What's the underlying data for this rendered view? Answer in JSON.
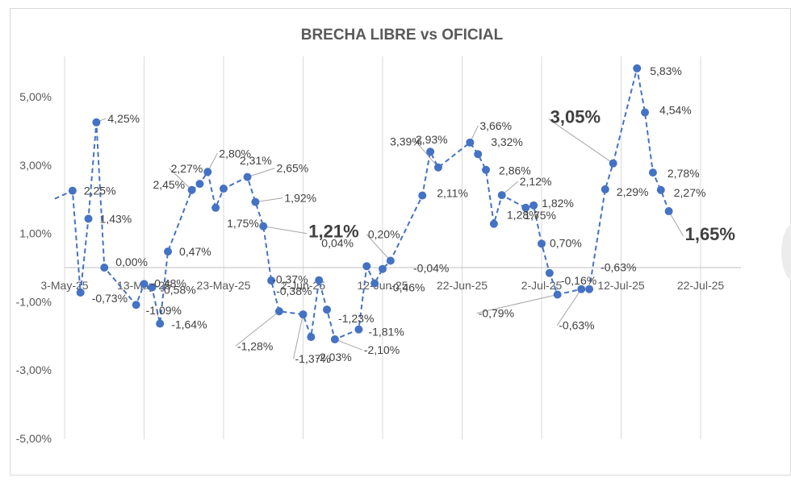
{
  "chart_data": {
    "type": "line",
    "title": "BRECHA LIBRE vs OFICIAL",
    "xlabel": "",
    "ylabel": "",
    "x_tick_labels": [
      "3-May-25",
      "13-May-25",
      "23-May-25",
      "2-Jun-25",
      "12-Jun-25",
      "22-Jun-25",
      "2-Jul-25",
      "12-Jul-25",
      "22-Jul-25"
    ],
    "y_tick_labels": [
      "5,00%",
      "3,00%",
      "1,00%",
      "-1,00%",
      "-3,00%",
      "-5,00%"
    ],
    "ylim": [
      -5,
      5.9
    ],
    "grid": "vertical",
    "series": [
      {
        "color": "#4472c4",
        "line_style": "dashed",
        "points": [
          {
            "x": "2025-05-04",
            "y": 2.25,
            "label": "2,25%"
          },
          {
            "x": "2025-05-05",
            "y": -0.73,
            "label": "-0,73%"
          },
          {
            "x": "2025-05-06",
            "y": 1.43,
            "label": "1,43%"
          },
          {
            "x": "2025-05-07",
            "y": 4.25,
            "label": "4,25%"
          },
          {
            "x": "2025-05-08",
            "y": 0.0,
            "label": "0,00%"
          },
          {
            "x": "2025-05-12",
            "y": -1.09,
            "label": "-1,09%"
          },
          {
            "x": "2025-05-13",
            "y": -0.48,
            "label": "-0,48%"
          },
          {
            "x": "2025-05-14",
            "y": -0.58,
            "label": "-0,58%"
          },
          {
            "x": "2025-05-15",
            "y": -1.64,
            "label": "-1,64%"
          },
          {
            "x": "2025-05-16",
            "y": 0.47,
            "label": "0,47%"
          },
          {
            "x": "2025-05-19",
            "y": 2.27,
            "label": "2,27%"
          },
          {
            "x": "2025-05-20",
            "y": 2.45,
            "label": "2,45%"
          },
          {
            "x": "2025-05-21",
            "y": 2.8,
            "label": "2,80%"
          },
          {
            "x": "2025-05-22",
            "y": 1.75,
            "label": "1,75%"
          },
          {
            "x": "2025-05-23",
            "y": 2.31,
            "label": "2,31%"
          },
          {
            "x": "2025-05-26",
            "y": 2.65,
            "label": "2,65%"
          },
          {
            "x": "2025-05-27",
            "y": 1.92,
            "label": "1,92%"
          },
          {
            "x": "2025-05-28",
            "y": 1.21,
            "label": "1,21%",
            "emphasis": true
          },
          {
            "x": "2025-05-29",
            "y": -0.38,
            "label": "-0,38%"
          },
          {
            "x": "2025-05-30",
            "y": -1.28,
            "label": "-1,28%"
          },
          {
            "x": "2025-06-02",
            "y": -1.37,
            "label": "-1,37%"
          },
          {
            "x": "2025-06-03",
            "y": -2.03,
            "label": "-2,03%"
          },
          {
            "x": "2025-06-04",
            "y": -0.37,
            "label": "-0,37%"
          },
          {
            "x": "2025-06-05",
            "y": -1.23,
            "label": "-1,23%"
          },
          {
            "x": "2025-06-06",
            "y": -2.1,
            "label": "-2,10%"
          },
          {
            "x": "2025-06-09",
            "y": -1.81,
            "label": "-1,81%"
          },
          {
            "x": "2025-06-10",
            "y": 0.04,
            "label": "0,04%"
          },
          {
            "x": "2025-06-11",
            "y": -0.46,
            "label": "-0,46%"
          },
          {
            "x": "2025-06-12",
            "y": -0.04,
            "label": "-0,04%"
          },
          {
            "x": "2025-06-13",
            "y": 0.2,
            "label": "0,20%"
          },
          {
            "x": "2025-06-17",
            "y": 2.11,
            "label": "2,11%"
          },
          {
            "x": "2025-06-18",
            "y": 3.39,
            "label": "3,39%"
          },
          {
            "x": "2025-06-19",
            "y": 2.93,
            "label": "2,93%"
          },
          {
            "x": "2025-06-23",
            "y": 3.66,
            "label": "3,66%"
          },
          {
            "x": "2025-06-24",
            "y": 3.32,
            "label": "3,32%"
          },
          {
            "x": "2025-06-25",
            "y": 2.86,
            "label": "2,86%"
          },
          {
            "x": "2025-06-26",
            "y": 1.28,
            "label": "1,28%"
          },
          {
            "x": "2025-06-27",
            "y": 2.12,
            "label": "2,12%"
          },
          {
            "x": "2025-06-30",
            "y": 1.75,
            "label": "1,75%"
          },
          {
            "x": "2025-07-01",
            "y": 1.82,
            "label": "1,82%"
          },
          {
            "x": "2025-07-02",
            "y": 0.7,
            "label": "0,70%"
          },
          {
            "x": "2025-07-03",
            "y": -0.16,
            "label": "-0,16%"
          },
          {
            "x": "2025-07-04",
            "y": -0.79,
            "label": "-0,79%"
          },
          {
            "x": "2025-07-07",
            "y": -0.63,
            "label": "-0,63%"
          },
          {
            "x": "2025-07-08",
            "y": -0.63,
            "label": "-0,63%"
          },
          {
            "x": "2025-07-10",
            "y": 2.29,
            "label": "2,29%"
          },
          {
            "x": "2025-07-11",
            "y": 3.05,
            "label": "3,05%",
            "emphasis": true
          },
          {
            "x": "2025-07-14",
            "y": 5.83,
            "label": "5,83%"
          },
          {
            "x": "2025-07-15",
            "y": 4.54,
            "label": "4,54%"
          },
          {
            "x": "2025-07-16",
            "y": 2.78,
            "label": "2,78%"
          },
          {
            "x": "2025-07-17",
            "y": 2.27,
            "label": "2,27%"
          },
          {
            "x": "2025-07-18",
            "y": 1.65,
            "label": "1,65%",
            "emphasis": true
          }
        ]
      }
    ]
  }
}
